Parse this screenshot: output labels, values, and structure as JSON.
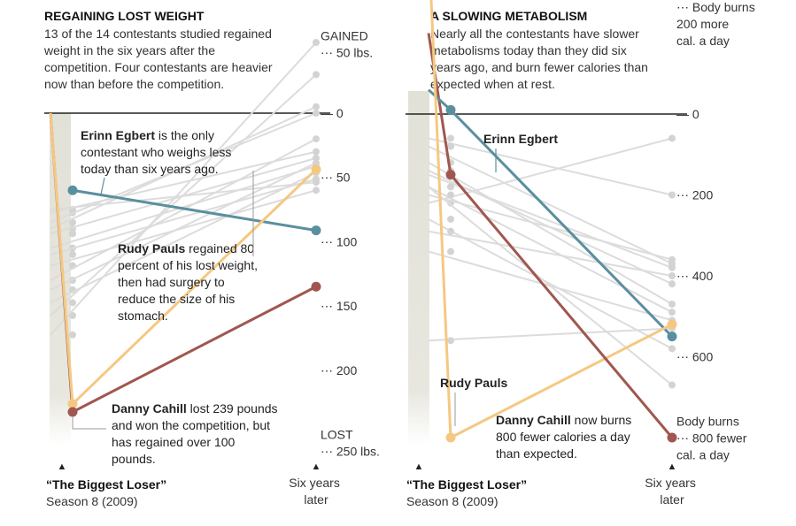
{
  "chart_data": [
    {
      "type": "line",
      "title": "REGAINING LOST WEIGHT",
      "subtitle_lines": [
        "13 of the 14 contestants studied regained",
        "weight in the six years after the",
        "competition. Four contestants are heavier",
        "now than before the competition."
      ],
      "categories": [
        "“The Biggest Loser” Season 8 (2009)",
        "Six years later"
      ],
      "ylim": [
        270,
        -45
      ],
      "y_ticks": [
        {
          "value": -40,
          "lines": [
            "GAINED",
            "⋯ 50 lbs."
          ]
        },
        {
          "value": 0,
          "lines": [
            "— 0"
          ]
        },
        {
          "value": 40,
          "lines": [
            "⋯ 50"
          ]
        },
        {
          "value": 80,
          "lines": [
            "⋯ 100"
          ]
        },
        {
          "value": 120,
          "lines": [
            "⋯ 150"
          ]
        },
        {
          "value": 160,
          "lines": [
            "⋯ 200"
          ]
        },
        {
          "value": 200,
          "lines": [
            "LOST",
            "⋯ 250 lbs."
          ]
        }
      ],
      "highlight_series": [
        {
          "name": "Erinn Egbert",
          "color": "#5a8f9e",
          "values": [
            48,
            73
          ]
        },
        {
          "name": "Rudy Pauls",
          "color": "#f5c882",
          "values": [
            181,
            35
          ]
        },
        {
          "name": "Danny Cahill",
          "color": "#a0574f",
          "values": [
            186,
            108
          ]
        },
        {
          "name": "",
          "color": "#a0574f",
          "values": [
            0,
            186
          ]
        },
        {
          "name": "",
          "color": "#f5c882",
          "values": [
            0,
            181
          ]
        }
      ],
      "background_series": [
        [
          60,
          43
        ],
        [
          62,
          24
        ],
        [
          68,
          0
        ],
        [
          72,
          -4
        ],
        [
          75,
          28
        ],
        [
          84,
          33
        ],
        [
          88,
          41
        ],
        [
          95,
          48
        ],
        [
          104,
          16
        ],
        [
          110,
          31
        ],
        [
          118,
          37
        ],
        [
          126,
          -24
        ],
        [
          138,
          -44
        ]
      ],
      "background_color": "#dcdcdc",
      "start_point": {
        "value": 0,
        "color": "#a0574f"
      },
      "annotations": [
        {
          "name": "Erinn Egbert",
          "bold": "Erinn Egbert",
          "lines": [
            " is the only",
            "contestant who weighs less",
            "today than six years ago."
          ]
        },
        {
          "name": "Rudy Pauls",
          "bold": "Rudy Pauls",
          "lines": [
            " regained 80",
            "percent of his lost weight,",
            "then had surgery to",
            "reduce the size of his",
            "stomach."
          ]
        },
        {
          "name": "Danny Cahill",
          "bold": "Danny Cahill",
          "lines": [
            " lost 239 pounds",
            "and won the competition, but",
            "has regained over 100",
            "pounds."
          ]
        }
      ]
    },
    {
      "type": "line",
      "title": "A SLOWING METABOLISM",
      "subtitle_lines": [
        "Nearly all the contestants have slower",
        "metabolisms today than they did six",
        "years ago, and burn fewer calories than",
        "expected when at rest."
      ],
      "categories": [
        "“The Biggest Loser” Season 8 (2009)",
        "Six years later"
      ],
      "ylim": [
        800,
        -200
      ],
      "y_ticks": [
        {
          "value": -190,
          "lines": [
            "⋯ Body burns",
            "200 more",
            "cal. a day"
          ]
        },
        {
          "value": 0,
          "lines": [
            "— 0"
          ]
        },
        {
          "value": 200,
          "lines": [
            "⋯ 200"
          ]
        },
        {
          "value": 400,
          "lines": [
            "⋯ 400"
          ]
        },
        {
          "value": 600,
          "lines": [
            "⋯ 600"
          ]
        },
        {
          "value": 760,
          "lines": [
            "Body burns",
            "⋯ 800 fewer",
            "cal. a day"
          ]
        }
      ],
      "highlight_series": [
        {
          "name": "Erinn Egbert",
          "color": "#5a8f9e",
          "values": [
            -10,
            550
          ]
        },
        {
          "name": "Rudy Pauls",
          "color": "#f5c882",
          "values": [
            800,
            520
          ]
        },
        {
          "name": "Danny Cahill",
          "color": "#a0574f",
          "values": [
            150,
            800
          ]
        },
        {
          "name": "",
          "color": "#a0574f",
          "values": [
            -200,
            150
          ]
        },
        {
          "name": "",
          "color": "#5a8f9e",
          "values": [
            -60,
            -10
          ]
        },
        {
          "name": "",
          "color": "#f5c882",
          "values": [
            -430,
            800
          ]
        }
      ],
      "background_series": [
        [
          60,
          200
        ],
        [
          80,
          370
        ],
        [
          120,
          470
        ],
        [
          140,
          420
        ],
        [
          150,
          380
        ],
        [
          180,
          490
        ],
        [
          220,
          60
        ],
        [
          260,
          580
        ],
        [
          290,
          400
        ],
        [
          340,
          510
        ],
        [
          560,
          530
        ],
        [
          180,
          670
        ],
        [
          200,
          360
        ]
      ],
      "background_color": "#dcdcdc",
      "annotations": [
        {
          "name": "Erinn Egbert",
          "bold": "Erinn Egbert",
          "lines": [
            ""
          ]
        },
        {
          "name": "Rudy Pauls",
          "bold": "Rudy Pauls",
          "lines": [
            ""
          ]
        },
        {
          "name": "Danny Cahill",
          "bold": "Danny Cahill",
          "lines": [
            " now burns",
            "800 fewer calories a day",
            "than expected."
          ]
        }
      ]
    }
  ],
  "footer": {
    "left_label_bold": "“The Biggest Loser”",
    "left_label_sub": "Season 8 (2009)",
    "right_label_lines": [
      "Six years",
      "later"
    ],
    "marker": "▲"
  }
}
